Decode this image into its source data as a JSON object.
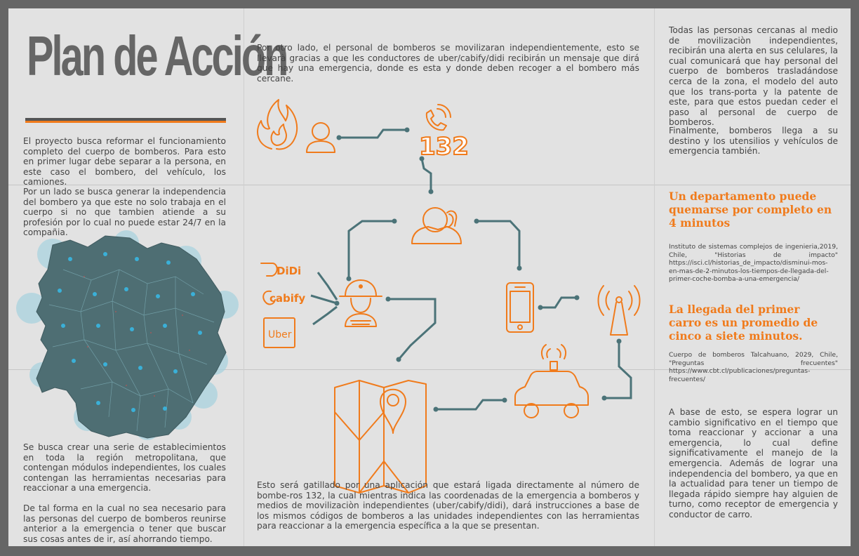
{
  "title": "Plan de Acción",
  "colors": {
    "accent": "#f07b1c",
    "wire": "#4b7378",
    "text": "#444444",
    "map": "#4e6e73"
  },
  "left": {
    "p1": "El proyecto busca reformar el funcionamiento completo del cuerpo de bomberos. Para esto en primer lugar debe separar a la persona, en este caso el bombero, del vehículo, los camiones.",
    "p2": "Por un lado se busca generar la independencia del bombero ya que este no solo trabaja en el cuerpo si no que tambien atiende a su profesión por lo cual no puede estar 24/7 en la compañia.",
    "p3": "Se busca crear una serie de establecimientos en toda la región metropolitana, que contengan módulos independientes, los cuales contengan las herramientas necesarias para reaccionar a una emergencia.",
    "p4": "De tal forma en la cual no sea necesario para las personas del cuerpo de bomberos reunirse anterior a la emergencia o tener que buscar sus cosas antes de ir, así ahorrando tiempo."
  },
  "center": {
    "top": "Por otro lado, el personal de bomberos se movilizaran independientemente, esto se llevarà gracias a que les conductores de uber/cabify/didi  recibirán un mensaje que dirá que hay una emergencia, donde es esta y donde deben recoger a el bombero más cercane.",
    "bottom": "Esto será gatillado por una aplicación que estará ligada directamente al número de bombe-ros 132, la cual mientras indica las coordenadas de la emergencia a bomberos y medios de movilizaciòn independientes (uber/cabify/didi), dará instrucciones a base de los mismos códigos de bomberos a las unidades independientes con las herramientas para reaccionar a la emergencia específica a la que se presentan."
  },
  "diagram": {
    "phone_number": "132",
    "brands": [
      "DiDi",
      "cabify",
      "Uber"
    ],
    "icons": [
      "fire-icon",
      "person-icon",
      "phone-call-icon",
      "call-operator-icon",
      "firefighter-icon",
      "smartphone-icon",
      "antenna-icon",
      "map-icon",
      "car-icon"
    ]
  },
  "right": {
    "p1": "Todas las personas cercanas al medio de movilizaciòn independientes, recibirán una alerta en sus celulares, la cual comunicará que hay personal del cuerpo de bomberos trasladándose cerca de la zona, el modelo del auto que los trans-porta y la patente de este, para que estos puedan ceder el paso al personal de cuerpo de bomberos.",
    "p2": "Finalmente, bomberos llega a su destino y los utensilios y vehículos de emergencia también.",
    "stat1": "Un departamento puede quemarse por completo en 4 minutos",
    "ref1": "Instituto de sistemas complejos de ingenieria,2019, Chile, \"Historias de impacto\" https://isci.cl/historias_de_impacto/disminui-mos-en-mas-de-2-minutos-los-tiempos-de-llegada-del-primer-coche-bomba-a-una-emergencia/",
    "stat2": "La llegada del primer carro es un promedio de cinco a siete minutos.",
    "ref2": "Cuerpo de bomberos Talcahuano, 2029, Chile, \"Preguntas frecuentes\" https://www.cbt.cl/publicaciones/preguntas-frecuentes/",
    "p3": "A base de esto, se espera lograr un cambio significativo en el tiempo que toma reaccionar y accionar a una emergencia, lo cual define significativamente el manejo de la emergencia. Además de lograr una independencia del bombero, ya que en la actualidad para tener un tiempo de llegada rápido siempre hay alguien de turno, como receptor de emergencia y conductor de carro."
  }
}
